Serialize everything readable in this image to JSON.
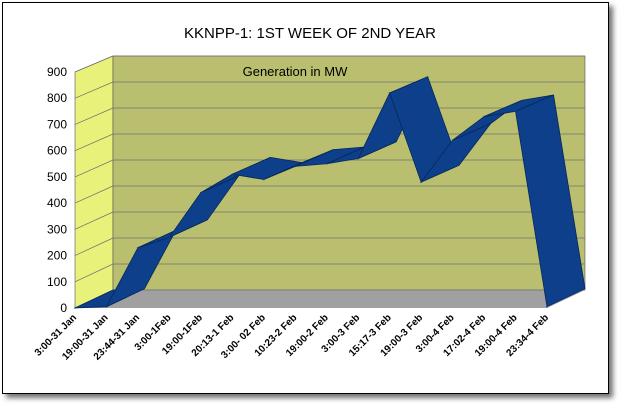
{
  "chart_data": {
    "type": "area",
    "title": "KKNPP-1: 1ST WEEK OF 2ND YEAR",
    "annotation": "Generation in MW",
    "xlabel": "",
    "ylabel": "",
    "ylim": [
      0,
      900
    ],
    "yticks": [
      0,
      100,
      200,
      300,
      400,
      500,
      600,
      700,
      800,
      900
    ],
    "grid": true,
    "legend": "none",
    "colors": {
      "series": "#0d3f8a",
      "wall": "#b9bf6e",
      "side_wall": "#e8f27a",
      "floor": "#a0a0a0"
    },
    "categories": [
      "3:00-31 Jan",
      "19:00-31 Jan",
      "23:44-31 Jan",
      "3:00-1Feb",
      "19:00-1Feb",
      "20:13-1 Feb",
      "3:00- 02 Feb",
      "10:23-2 Feb",
      "19:00-2 Feb",
      "3:00-3 Feb",
      "15:17-3 Feb",
      "19:00-3 Feb",
      "3:00-4 Feb",
      "17:02-4 Feb",
      "19:00-4 Feb",
      "23:34-4 Feb"
    ],
    "series": [
      {
        "name": "",
        "values": [
          0,
          5,
          230,
          270,
          440,
          510,
          490,
          540,
          550,
          570,
          820,
          480,
          640,
          730,
          750,
          5
        ]
      }
    ]
  }
}
